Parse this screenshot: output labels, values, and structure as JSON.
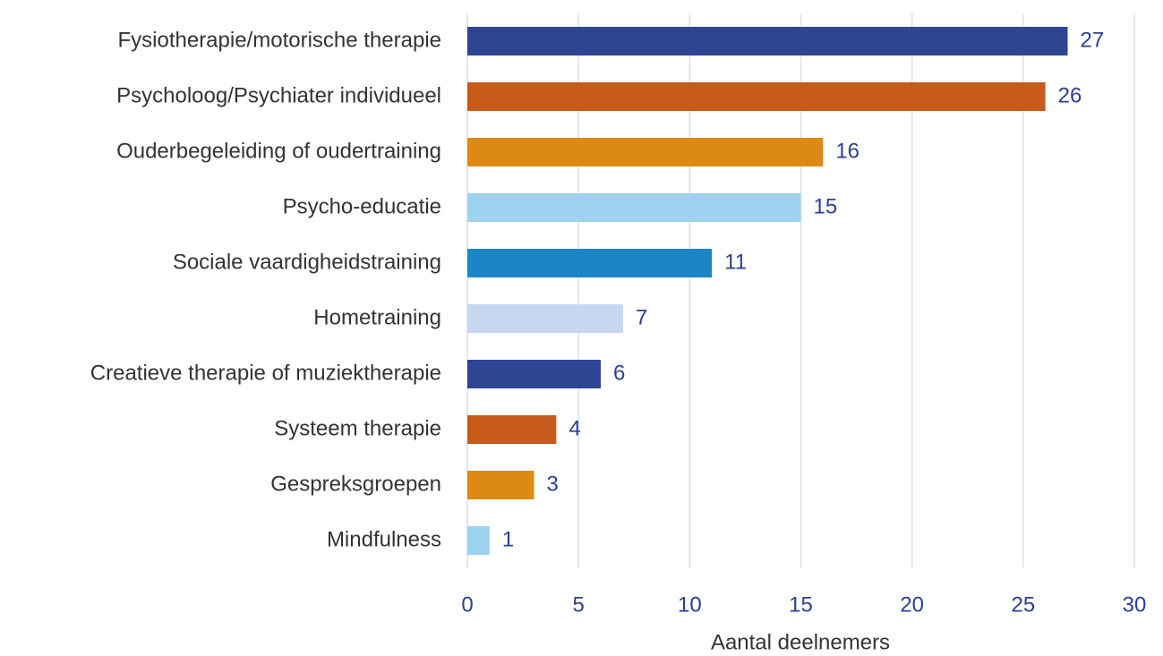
{
  "chart_data": {
    "type": "barh",
    "x_label": "Aantal deelnemers",
    "categories": [
      "Fysiotherapie/motorische therapie",
      "Psycholoog/Psychiater individueel",
      "Ouderbegeleiding of oudertraining",
      "Psycho-educatie",
      "Sociale vaardigheidstraining",
      "Hometraining",
      "Creatieve therapie of muziektherapie",
      "Systeem therapie",
      "Gespreksgroepen",
      "Mindfulness"
    ],
    "values": [
      27,
      26,
      16,
      15,
      11,
      7,
      6,
      4,
      3,
      1
    ],
    "colors": [
      "#2e4594",
      "#c85b1b",
      "#dc8a14",
      "#9dd3f0",
      "#1a86c8",
      "#c6d8f0",
      "#2e4594",
      "#c85b1b",
      "#dc8a14",
      "#9dd3f0"
    ],
    "xlim": [
      0,
      30
    ],
    "xticks": [
      0,
      5,
      10,
      15,
      20,
      25,
      30
    ],
    "grid": true
  }
}
